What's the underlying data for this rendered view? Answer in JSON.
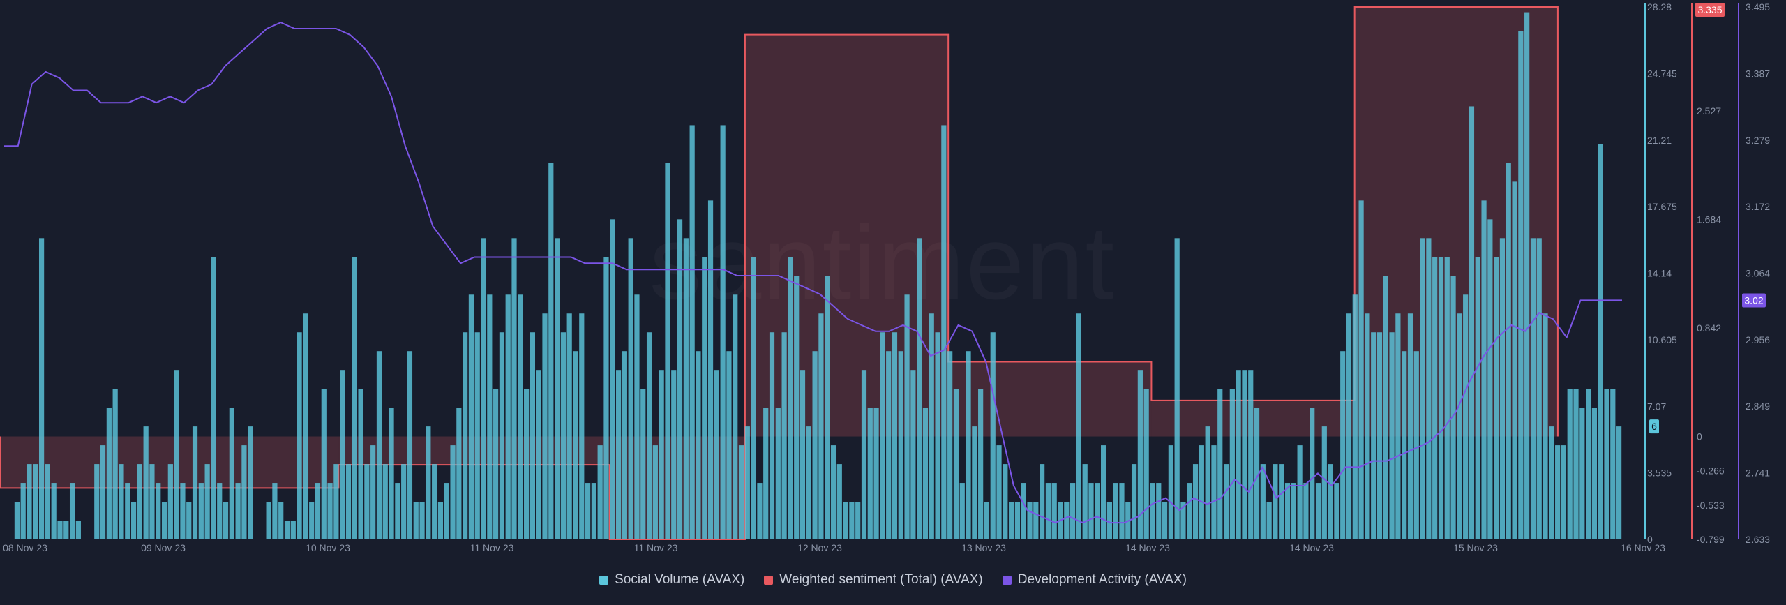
{
  "watermark": "santiment",
  "chart_data": {
    "type": "bar",
    "x_ticks": [
      "08 Nov 23",
      "09 Nov 23",
      "10 Nov 23",
      "11 Nov 23",
      "11 Nov 23",
      "12 Nov 23",
      "13 Nov 23",
      "14 Nov 23",
      "14 Nov 23",
      "15 Nov 23",
      "16 Nov 23"
    ],
    "axes": {
      "social_volume": {
        "ticks": [
          "0",
          "3.535",
          "7.07",
          "10.605",
          "14.14",
          "17.675",
          "21.21",
          "24.745",
          "28.28"
        ],
        "ylim": [
          0,
          28.28
        ],
        "color": "#5cc6dc"
      },
      "weighted_sentiment": {
        "ticks": [
          "-0.799",
          "-0.533",
          "-0.266",
          "0",
          "0.842",
          "1.684",
          "2.527",
          "3.335"
        ],
        "ylim": [
          -0.799,
          3.335
        ],
        "color": "#e8595f"
      },
      "development_activity": {
        "ticks": [
          "2.633",
          "2.741",
          "2.849",
          "2.956",
          "3.064",
          "3.172",
          "3.279",
          "3.387",
          "3.495"
        ],
        "ylim": [
          2.633,
          3.495
        ],
        "color": "#7b55e6"
      }
    },
    "badges": {
      "social_volume": "6",
      "weighted_sentiment": "3.335",
      "development_activity": "3.02"
    },
    "series": [
      {
        "name": "Social Volume (AVAX)",
        "type": "bar",
        "axis": "social_volume",
        "values": [
          2,
          3,
          4,
          4,
          16,
          4,
          3,
          1,
          1,
          3,
          1,
          0,
          0,
          4,
          5,
          7,
          8,
          4,
          3,
          2,
          4,
          6,
          4,
          3,
          2,
          4,
          9,
          3,
          2,
          6,
          3,
          4,
          15,
          3,
          2,
          7,
          3,
          5,
          6,
          0,
          0,
          2,
          3,
          2,
          1,
          1,
          11,
          12,
          2,
          3,
          8,
          3,
          4,
          9,
          4,
          15,
          8,
          4,
          5,
          10,
          4,
          7,
          3,
          4,
          10,
          2,
          2,
          6,
          4,
          2,
          3,
          5,
          7,
          11,
          13,
          11,
          16,
          13,
          8,
          11,
          13,
          16,
          13,
          8,
          11,
          9,
          12,
          20,
          16,
          11,
          12,
          10,
          12,
          3,
          3,
          5,
          15,
          17,
          9,
          10,
          16,
          13,
          8,
          11,
          5,
          9,
          20,
          9,
          17,
          16,
          22,
          10,
          15,
          18,
          9,
          22,
          10,
          13,
          5,
          6,
          15,
          3,
          7,
          11,
          7,
          11,
          15,
          14,
          9,
          6,
          10,
          12,
          14,
          5,
          4,
          2,
          2,
          2,
          9,
          7,
          7,
          11,
          10,
          11,
          10,
          13,
          9,
          16,
          7,
          12,
          11,
          22,
          10,
          8,
          3,
          10,
          6,
          8,
          2,
          11,
          5,
          4,
          2,
          2,
          3,
          2,
          2,
          4,
          3,
          3,
          2,
          2,
          3,
          12,
          4,
          3,
          3,
          5,
          2,
          3,
          3,
          2,
          4,
          9,
          8,
          3,
          3,
          2,
          5,
          16,
          2,
          3,
          4,
          5,
          6,
          5,
          8,
          4,
          8,
          9,
          9,
          9,
          7,
          4,
          2,
          4,
          4,
          3,
          3,
          5,
          3,
          7,
          3,
          6,
          4,
          3,
          10,
          12,
          13,
          18,
          12,
          11,
          11,
          14,
          11,
          12,
          10,
          12,
          10,
          16,
          16,
          15,
          15,
          15,
          14,
          12,
          13,
          23,
          15,
          18,
          17,
          15,
          16,
          20,
          19,
          27,
          28,
          16,
          16,
          12,
          6,
          5,
          5,
          8,
          8,
          7,
          8,
          7,
          21,
          8,
          8,
          6
        ]
      },
      {
        "name": "Weighted sentiment (Total) (AVAX)",
        "type": "step-area",
        "axis": "weighted_sentiment",
        "steps": [
          {
            "from": "08 Nov 23 00:00",
            "to": "09 Nov 23 16:00",
            "value": -0.4
          },
          {
            "from": "09 Nov 23 16:00",
            "to": "11 Nov 23 00:00",
            "value": -0.22
          },
          {
            "from": "11 Nov 23 00:00",
            "to": "11 Nov 23 16:00",
            "value": -0.799
          },
          {
            "from": "11 Nov 23 16:00",
            "to": "12 Nov 23 16:00",
            "value": 3.12
          },
          {
            "from": "12 Nov 23 16:00",
            "to": "13 Nov 23 16:00",
            "value": 0.58
          },
          {
            "from": "13 Nov 23 16:00",
            "to": "14 Nov 23 16:00",
            "value": 0.28
          },
          {
            "from": "14 Nov 23 16:00",
            "to": "15 Nov 23 16:00",
            "value": 3.335
          }
        ]
      },
      {
        "name": "Development Activity (AVAX)",
        "type": "line",
        "axis": "development_activity",
        "values": [
          3.27,
          3.27,
          3.37,
          3.39,
          3.38,
          3.36,
          3.36,
          3.34,
          3.34,
          3.34,
          3.35,
          3.34,
          3.35,
          3.34,
          3.36,
          3.37,
          3.4,
          3.42,
          3.44,
          3.46,
          3.47,
          3.46,
          3.46,
          3.46,
          3.46,
          3.45,
          3.43,
          3.4,
          3.35,
          3.27,
          3.21,
          3.14,
          3.11,
          3.08,
          3.09,
          3.09,
          3.09,
          3.09,
          3.09,
          3.09,
          3.09,
          3.09,
          3.08,
          3.08,
          3.08,
          3.07,
          3.07,
          3.07,
          3.07,
          3.07,
          3.07,
          3.07,
          3.07,
          3.06,
          3.06,
          3.06,
          3.06,
          3.05,
          3.04,
          3.03,
          3.01,
          2.99,
          2.98,
          2.97,
          2.97,
          2.98,
          2.97,
          2.93,
          2.94,
          2.98,
          2.97,
          2.92,
          2.82,
          2.72,
          2.68,
          2.67,
          2.66,
          2.67,
          2.66,
          2.67,
          2.66,
          2.66,
          2.67,
          2.69,
          2.7,
          2.68,
          2.7,
          2.69,
          2.7,
          2.73,
          2.71,
          2.75,
          2.7,
          2.72,
          2.72,
          2.74,
          2.72,
          2.75,
          2.75,
          2.76,
          2.76,
          2.77,
          2.78,
          2.79,
          2.81,
          2.84,
          2.89,
          2.93,
          2.96,
          2.98,
          2.97,
          3.0,
          2.99,
          2.96,
          3.02,
          3.02,
          3.02,
          3.02
        ]
      }
    ],
    "legend_position": "bottom"
  }
}
